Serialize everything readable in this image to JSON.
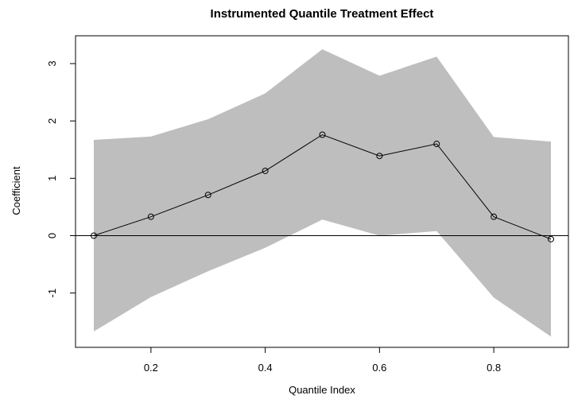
{
  "chart_data": {
    "type": "line",
    "title": "Instrumented Quantile Treatment Effect",
    "xlabel": "Quantile Index",
    "ylabel": "Coefficient",
    "xlim": [
      0.1,
      0.9
    ],
    "ylim": [
      -1.7,
      3.3
    ],
    "x_ticks": [
      0.2,
      0.4,
      0.6,
      0.8
    ],
    "x_tick_labels": [
      "0.2",
      "0.4",
      "0.6",
      "0.8"
    ],
    "y_ticks": [
      -1,
      0,
      1,
      2,
      3
    ],
    "y_tick_labels": [
      "-1",
      "0",
      "1",
      "2",
      "3"
    ],
    "grid": false,
    "reference_line_y": 0,
    "band_color": "#bebebe",
    "line_color": "#000000",
    "x": [
      0.1,
      0.2,
      0.3,
      0.4,
      0.5,
      0.6,
      0.7,
      0.8,
      0.9
    ],
    "series": [
      {
        "values": [
          0.0,
          0.33,
          0.71,
          1.13,
          1.76,
          1.39,
          1.6,
          0.33,
          -0.06
        ]
      }
    ],
    "band_upper": [
      1.67,
      1.73,
      2.03,
      2.48,
      3.25,
      2.79,
      3.12,
      1.72,
      1.64
    ],
    "band_lower": [
      -1.67,
      -1.07,
      -0.62,
      -0.21,
      0.28,
      0.0,
      0.08,
      -1.08,
      -1.76
    ]
  }
}
